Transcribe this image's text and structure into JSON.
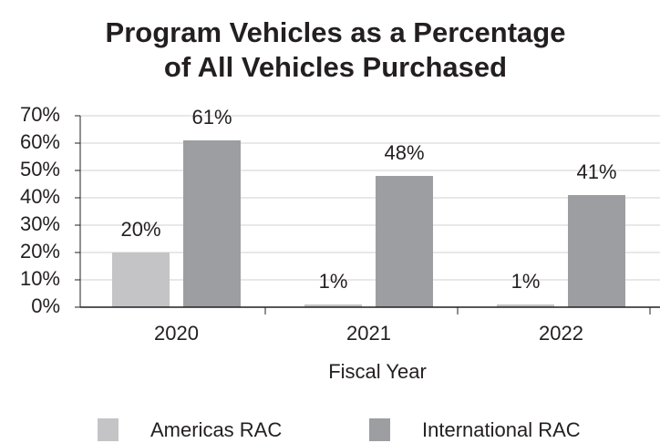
{
  "chart_data": {
    "type": "bar",
    "title": [
      "Program Vehicles as a Percentage",
      "of All Vehicles Purchased"
    ],
    "xlabel": "Fiscal Year",
    "categories": [
      "2020",
      "2021",
      "2022"
    ],
    "series": [
      {
        "name": "Americas RAC",
        "color": "#c4c4c6",
        "values": [
          20,
          1,
          1
        ],
        "value_labels": [
          "20%",
          "1%",
          "1%"
        ]
      },
      {
        "name": "International RAC",
        "color": "#9d9ea1",
        "values": [
          61,
          48,
          41
        ],
        "value_labels": [
          "61%",
          "48%",
          "41%"
        ]
      }
    ],
    "ylim": [
      0,
      70
    ],
    "yticks": [
      {
        "value": 0,
        "label": "0%"
      },
      {
        "value": 10,
        "label": "10%"
      },
      {
        "value": 20,
        "label": "20%"
      },
      {
        "value": 30,
        "label": "30%"
      },
      {
        "value": 40,
        "label": "40%"
      },
      {
        "value": 50,
        "label": "50%"
      },
      {
        "value": 60,
        "label": "60%"
      },
      {
        "value": 70,
        "label": "70%"
      }
    ],
    "grid": true,
    "legend": "bottom"
  }
}
